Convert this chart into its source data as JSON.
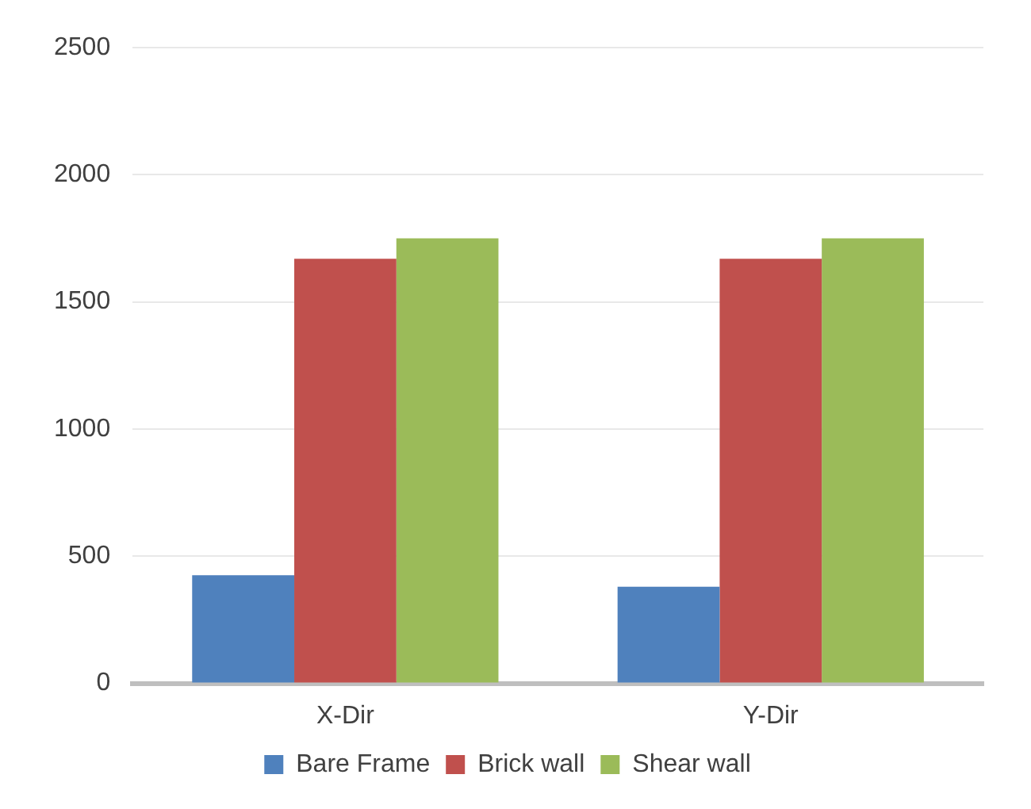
{
  "chart_data": {
    "type": "bar",
    "categories": [
      "X-Dir",
      "Y-Dir"
    ],
    "series": [
      {
        "name": "Bare Frame",
        "color": "#4f81bd",
        "values": [
          425,
          380
        ]
      },
      {
        "name": "Brick wall",
        "color": "#c0504d",
        "values": [
          1670,
          1670
        ]
      },
      {
        "name": "Shear wall",
        "color": "#9bbb59",
        "values": [
          1750,
          1750
        ]
      }
    ],
    "ylim": [
      0,
      2500
    ],
    "yticks": [
      0,
      500,
      1000,
      1500,
      2000,
      2500
    ],
    "grid": "y",
    "legend": "bottom"
  }
}
